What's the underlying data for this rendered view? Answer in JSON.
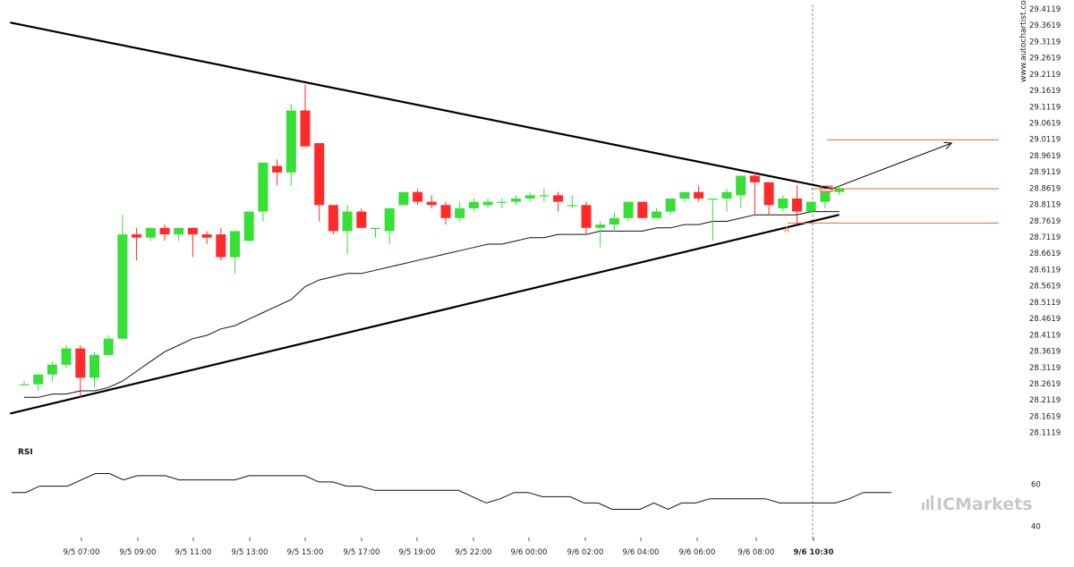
{
  "watermark": "www.autochartist.com",
  "brand": "ICMarkets",
  "colors": {
    "up": "#36e036",
    "down": "#ff2a2a",
    "level": "#e46c2c",
    "pattern_line": "#000000",
    "guide": "#777777"
  },
  "chart_data": [
    {
      "type": "candlestick",
      "xlabel": "",
      "ylabel": "",
      "x_tick_labels": [
        "9/5 07:00",
        "9/5 09:00",
        "9/5 11:00",
        "9/5 13:00",
        "9/5 15:00",
        "9/5 17:00",
        "9/5 19:00",
        "9/5 22:00",
        "9/6 00:00",
        "9/6 02:00",
        "9/6 04:00",
        "9/6 06:00",
        "9/6 08:00",
        "9/6 10:30"
      ],
      "current_time_label": "9/6 10:30",
      "y_tick_labels": [
        "29.4119",
        "29.3619",
        "29.3119",
        "29.2619",
        "29.2119",
        "29.1619",
        "29.1119",
        "29.0619",
        "29.0119",
        "28.9619",
        "28.9119",
        "28.8619",
        "28.8119",
        "28.7619",
        "28.7119",
        "28.6619",
        "28.6119",
        "28.5619",
        "28.5119",
        "28.4619",
        "28.4119",
        "28.3619",
        "28.3119",
        "28.2619",
        "28.2119",
        "28.1619",
        "28.1119"
      ],
      "ylim": [
        28.1,
        29.42
      ],
      "candles": [
        {
          "o": 28.26,
          "h": 28.27,
          "l": 28.26,
          "c": 28.26
        },
        {
          "o": 28.26,
          "h": 28.29,
          "l": 28.24,
          "c": 28.29
        },
        {
          "o": 28.29,
          "h": 28.33,
          "l": 28.27,
          "c": 28.32
        },
        {
          "o": 28.32,
          "h": 28.38,
          "l": 28.31,
          "c": 28.37
        },
        {
          "o": 28.37,
          "h": 28.38,
          "l": 28.22,
          "c": 28.28
        },
        {
          "o": 28.28,
          "h": 28.36,
          "l": 28.25,
          "c": 28.35
        },
        {
          "o": 28.35,
          "h": 28.41,
          "l": 28.35,
          "c": 28.4
        },
        {
          "o": 28.4,
          "h": 28.78,
          "l": 28.4,
          "c": 28.72
        },
        {
          "o": 28.72,
          "h": 28.74,
          "l": 28.64,
          "c": 28.71
        },
        {
          "o": 28.71,
          "h": 28.74,
          "l": 28.7,
          "c": 28.74
        },
        {
          "o": 28.74,
          "h": 28.75,
          "l": 28.7,
          "c": 28.72
        },
        {
          "o": 28.72,
          "h": 28.74,
          "l": 28.7,
          "c": 28.74
        },
        {
          "o": 28.74,
          "h": 28.74,
          "l": 28.65,
          "c": 28.72
        },
        {
          "o": 28.72,
          "h": 28.73,
          "l": 28.69,
          "c": 28.71
        },
        {
          "o": 28.72,
          "h": 28.74,
          "l": 28.64,
          "c": 28.65
        },
        {
          "o": 28.65,
          "h": 28.73,
          "l": 28.6,
          "c": 28.73
        },
        {
          "o": 28.7,
          "h": 28.79,
          "l": 28.7,
          "c": 28.79
        },
        {
          "o": 28.79,
          "h": 28.94,
          "l": 28.76,
          "c": 28.94
        },
        {
          "o": 28.93,
          "h": 28.95,
          "l": 28.87,
          "c": 28.91
        },
        {
          "o": 28.91,
          "h": 29.12,
          "l": 28.87,
          "c": 29.1
        },
        {
          "o": 29.1,
          "h": 29.18,
          "l": 28.99,
          "c": 28.99
        },
        {
          "o": 29.0,
          "h": 29.0,
          "l": 28.76,
          "c": 28.81
        },
        {
          "o": 28.81,
          "h": 28.81,
          "l": 28.72,
          "c": 28.73
        },
        {
          "o": 28.73,
          "h": 28.81,
          "l": 28.66,
          "c": 28.79
        },
        {
          "o": 28.79,
          "h": 28.8,
          "l": 28.74,
          "c": 28.74
        },
        {
          "o": 28.74,
          "h": 28.74,
          "l": 28.71,
          "c": 28.74
        },
        {
          "o": 28.73,
          "h": 28.8,
          "l": 28.69,
          "c": 28.8
        },
        {
          "o": 28.81,
          "h": 28.85,
          "l": 28.81,
          "c": 28.85
        },
        {
          "o": 28.85,
          "h": 28.86,
          "l": 28.81,
          "c": 28.82
        },
        {
          "o": 28.82,
          "h": 28.84,
          "l": 28.8,
          "c": 28.81
        },
        {
          "o": 28.81,
          "h": 28.82,
          "l": 28.75,
          "c": 28.77
        },
        {
          "o": 28.77,
          "h": 28.82,
          "l": 28.76,
          "c": 28.8
        },
        {
          "o": 28.8,
          "h": 28.83,
          "l": 28.79,
          "c": 28.82
        },
        {
          "o": 28.81,
          "h": 28.83,
          "l": 28.8,
          "c": 28.82
        },
        {
          "o": 28.82,
          "h": 28.83,
          "l": 28.8,
          "c": 28.82
        },
        {
          "o": 28.82,
          "h": 28.84,
          "l": 28.81,
          "c": 28.83
        },
        {
          "o": 28.83,
          "h": 28.85,
          "l": 28.82,
          "c": 28.84
        },
        {
          "o": 28.84,
          "h": 28.86,
          "l": 28.82,
          "c": 28.84
        },
        {
          "o": 28.84,
          "h": 28.85,
          "l": 28.79,
          "c": 28.82
        },
        {
          "o": 28.81,
          "h": 28.84,
          "l": 28.8,
          "c": 28.81
        },
        {
          "o": 28.81,
          "h": 28.82,
          "l": 28.72,
          "c": 28.74
        },
        {
          "o": 28.74,
          "h": 28.76,
          "l": 28.68,
          "c": 28.75
        },
        {
          "o": 28.75,
          "h": 28.79,
          "l": 28.73,
          "c": 28.77
        },
        {
          "o": 28.77,
          "h": 28.82,
          "l": 28.76,
          "c": 28.82
        },
        {
          "o": 28.82,
          "h": 28.82,
          "l": 28.77,
          "c": 28.77
        },
        {
          "o": 28.77,
          "h": 28.8,
          "l": 28.77,
          "c": 28.79
        },
        {
          "o": 28.79,
          "h": 28.83,
          "l": 28.78,
          "c": 28.83
        },
        {
          "o": 28.83,
          "h": 28.85,
          "l": 28.82,
          "c": 28.85
        },
        {
          "o": 28.85,
          "h": 28.87,
          "l": 28.82,
          "c": 28.83
        },
        {
          "o": 28.83,
          "h": 28.83,
          "l": 28.7,
          "c": 28.83
        },
        {
          "o": 28.83,
          "h": 28.86,
          "l": 28.79,
          "c": 28.85
        },
        {
          "o": 28.84,
          "h": 28.9,
          "l": 28.8,
          "c": 28.9
        },
        {
          "o": 28.9,
          "h": 28.91,
          "l": 28.78,
          "c": 28.88
        },
        {
          "o": 28.88,
          "h": 28.88,
          "l": 28.78,
          "c": 28.81
        },
        {
          "o": 28.8,
          "h": 28.84,
          "l": 28.79,
          "c": 28.83
        },
        {
          "o": 28.83,
          "h": 28.87,
          "l": 28.75,
          "c": 28.79
        },
        {
          "o": 28.79,
          "h": 28.82,
          "l": 28.79,
          "c": 28.82
        },
        {
          "o": 28.82,
          "h": 28.85,
          "l": 28.8,
          "c": 28.85
        },
        {
          "o": 28.85,
          "h": 28.87,
          "l": 28.84,
          "c": 28.86
        }
      ],
      "moving_average": [
        28.22,
        28.22,
        28.23,
        28.23,
        28.24,
        28.24,
        28.25,
        28.27,
        28.3,
        28.33,
        28.36,
        28.38,
        28.4,
        28.41,
        28.43,
        28.44,
        28.46,
        28.48,
        28.5,
        28.52,
        28.56,
        28.58,
        28.59,
        28.6,
        28.6,
        28.61,
        28.62,
        28.63,
        28.64,
        28.65,
        28.66,
        28.67,
        28.68,
        28.69,
        28.69,
        28.7,
        28.71,
        28.71,
        28.72,
        28.72,
        28.72,
        28.73,
        28.73,
        28.73,
        28.73,
        28.74,
        28.74,
        28.75,
        28.75,
        28.76,
        28.76,
        28.77,
        28.78,
        28.78,
        28.78,
        28.78,
        28.79,
        28.79,
        28.79
      ],
      "pattern": {
        "type": "triangle",
        "upper_line": [
          {
            "candle": -1,
            "price": 29.37
          },
          {
            "candle": 57.5,
            "price": 28.86
          }
        ],
        "lower_line": [
          {
            "candle": -1,
            "price": 28.17
          },
          {
            "candle": 58,
            "price": 28.78
          }
        ],
        "projection_arrow": [
          {
            "candle": 57.5,
            "price": 28.86
          },
          {
            "candle": 66,
            "price": 29.0
          }
        ]
      },
      "levels": [
        {
          "price": 29.01,
          "label": ""
        },
        {
          "price": 28.86,
          "label": ""
        },
        {
          "price": 28.755,
          "label": "A"
        }
      ]
    },
    {
      "type": "line",
      "title": "RSI",
      "y_tick_labels": [
        "60",
        "40"
      ],
      "ylim": [
        35,
        78
      ],
      "values": [
        56,
        56,
        59,
        59,
        59,
        62,
        65,
        65,
        62,
        64,
        64,
        64,
        62,
        62,
        62,
        62,
        62,
        64,
        64,
        64,
        64,
        64,
        61,
        61,
        59,
        59,
        57,
        57,
        57,
        57,
        57,
        57,
        57,
        54,
        51,
        53,
        56,
        56,
        54,
        54,
        54,
        51,
        51,
        48,
        48,
        48,
        51,
        48,
        51,
        51,
        53,
        53,
        53,
        53,
        53,
        51,
        51,
        51,
        51,
        51,
        53,
        56,
        56,
        56
      ]
    }
  ]
}
